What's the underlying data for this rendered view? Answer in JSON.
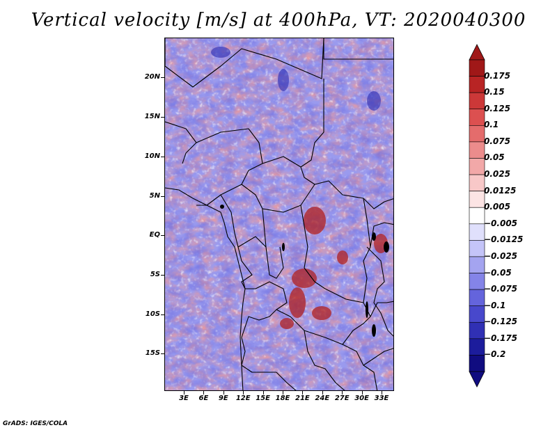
{
  "title": "Vertical velocity [m/s] at 400hPa, VT: 2020040300",
  "footer": "GrADS: IGES/COLA",
  "map": {
    "lat_ticks": [
      "20N",
      "15N",
      "10N",
      "5N",
      "EQ",
      "5S",
      "10S",
      "15S"
    ],
    "lon_ticks": [
      "3E",
      "6E",
      "9E",
      "12E",
      "15E",
      "18E",
      "21E",
      "24E",
      "27E",
      "30E",
      "33E"
    ]
  },
  "colorbar": {
    "labels": [
      "0.175",
      "0.15",
      "0.125",
      "0.1",
      "0.075",
      "0.05",
      "0.025",
      "0.0125",
      "0.005",
      "-0.005",
      "-0.0125",
      "-0.025",
      "-0.05",
      "-0.075",
      "-0.1",
      "-0.125",
      "-0.175",
      "-0.2"
    ],
    "colors": [
      "#a01818",
      "#b82424",
      "#cc3838",
      "#dc5050",
      "#e46c6c",
      "#ec8c8c",
      "#f2a8a8",
      "#f8c8c8",
      "#fce4e4",
      "#ffffff",
      "#e0e0fc",
      "#c4c4f8",
      "#a4a4f0",
      "#8484e8",
      "#6464dc",
      "#4848cc",
      "#3030b4",
      "#1c1c9c",
      "#100c80"
    ]
  }
}
